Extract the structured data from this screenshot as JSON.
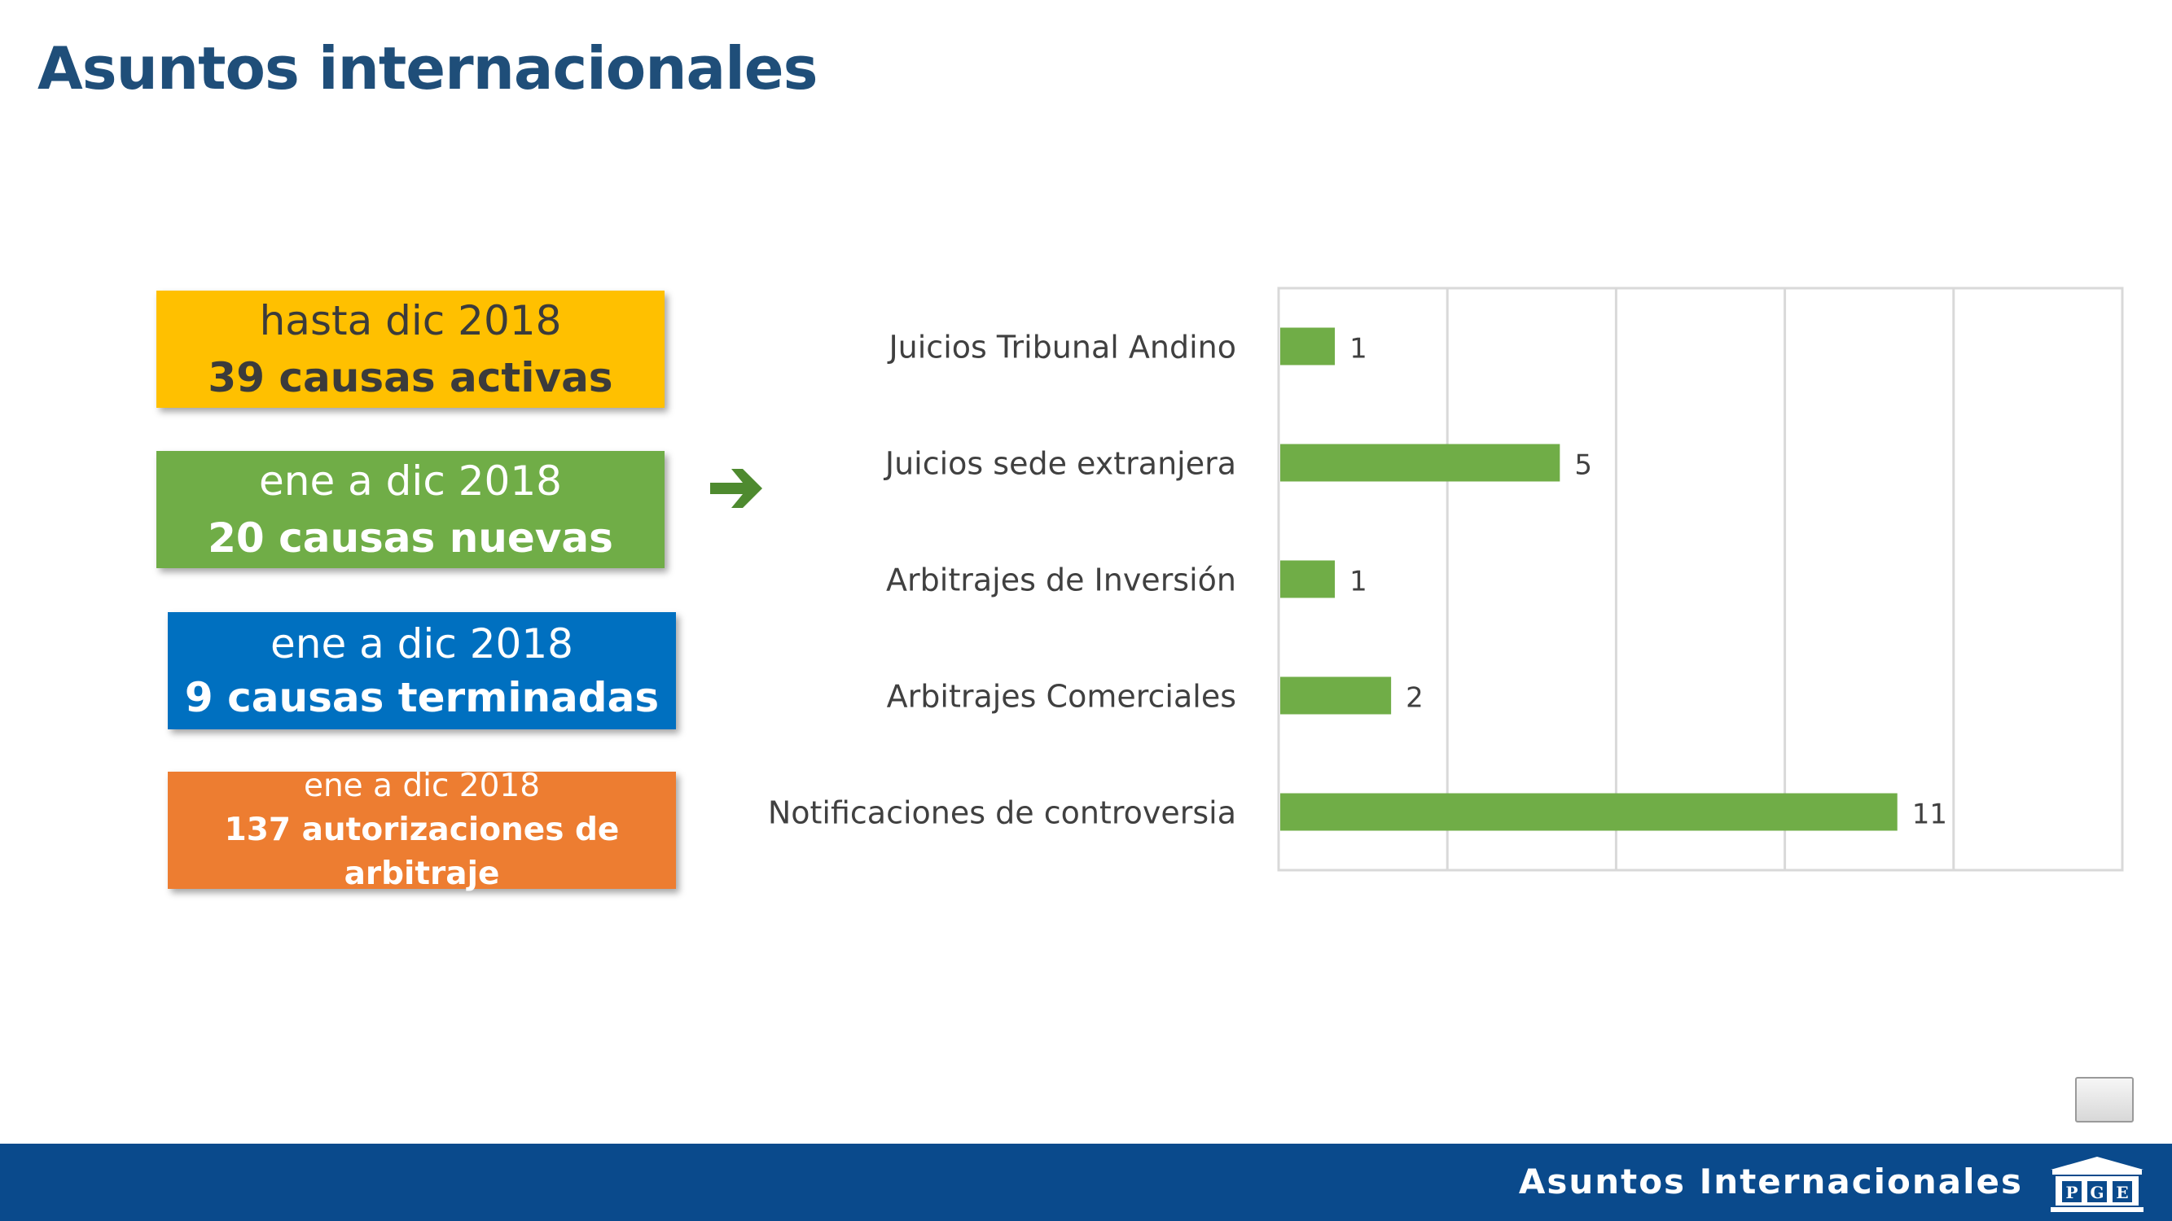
{
  "page": {
    "title": "Asuntos internacionales",
    "footer_label": "Asuntos Internacionales",
    "logo_text": "PGE"
  },
  "boxes": [
    {
      "line1": "hasta dic 2018",
      "line2": "39 causas activas",
      "color": "#ffc000"
    },
    {
      "line1": "ene a dic 2018",
      "line2": "20 causas nuevas",
      "color": "#70ad47"
    },
    {
      "line1": "ene a dic 2018",
      "line2": "9 causas terminadas",
      "color": "#0070c0"
    },
    {
      "line1": "ene a dic 2018",
      "line2": "137 autorizaciones de arbitraje",
      "color": "#ed7d31"
    }
  ],
  "icons": {
    "arrow": "arrow-right-icon",
    "logo": "building-logo-icon"
  },
  "colors": {
    "title": "#1f4e79",
    "bar": "#70ad47",
    "footer": "#0a4a8c",
    "grid": "#d9d9d9"
  },
  "chart_data": {
    "type": "bar",
    "orientation": "horizontal",
    "categories": [
      "Juicios Tribunal Andino",
      "Juicios sede extranjera",
      "Arbitrajes de Inversión",
      "Arbitrajes Comerciales",
      "Notificaciones de controversia"
    ],
    "values": [
      1,
      5,
      1,
      2,
      11
    ],
    "data_labels": [
      "1",
      "5",
      "1",
      "2",
      "11"
    ],
    "xlim": [
      0,
      15
    ],
    "grid": true,
    "legend": "none"
  }
}
